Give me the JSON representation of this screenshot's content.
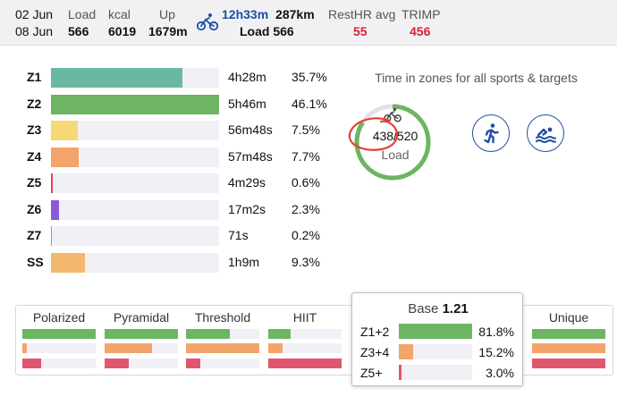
{
  "header": {
    "date_from": "02 Jun",
    "date_to": "08 Jun",
    "load": {
      "label": "Load",
      "value": "566"
    },
    "kcal": {
      "label": "kcal",
      "value": "6019"
    },
    "up": {
      "label": "Up",
      "value": "1679m"
    },
    "bike": {
      "icon": "bicycle-icon",
      "time": "12h33m",
      "distance": "287km",
      "load": "Load 566"
    },
    "resthr": {
      "label": "RestHR avg",
      "value": "55"
    },
    "trimp": {
      "label": "TRIMP",
      "value": "456"
    }
  },
  "zones": [
    {
      "name": "Z1",
      "time": "4h28m",
      "percent": "35.7%",
      "fill": 0.78,
      "color": "#6ab8a4"
    },
    {
      "name": "Z2",
      "time": "5h46m",
      "percent": "46.1%",
      "fill": 1.0,
      "color": "#6db562"
    },
    {
      "name": "Z3",
      "time": "56m48s",
      "percent": "7.5%",
      "fill": 0.16,
      "color": "#f6d874"
    },
    {
      "name": "Z4",
      "time": "57m48s",
      "percent": "7.7%",
      "fill": 0.165,
      "color": "#f2a46a"
    },
    {
      "name": "Z5",
      "time": "4m29s",
      "percent": "0.6%",
      "fill": 0.012,
      "color": "#e0475f"
    },
    {
      "name": "Z6",
      "time": "17m2s",
      "percent": "2.3%",
      "fill": 0.048,
      "color": "#8b5ad6"
    },
    {
      "name": "Z7",
      "time": "71s",
      "percent": "0.2%",
      "fill": 0.006,
      "color": "#9a9aa6"
    },
    {
      "name": "SS",
      "time": "1h9m",
      "percent": "9.3%",
      "fill": 0.2,
      "color": "#f4b86e"
    }
  ],
  "time_in_zones_title": "Time in zones for all sports & targets",
  "gauge": {
    "value": "438/520",
    "label": "Load",
    "fraction": 0.842,
    "color": "#6db562",
    "icon": "bicycle-icon"
  },
  "sport_buttons": [
    {
      "icon": "running-icon",
      "color": "#1d4fa3"
    },
    {
      "icon": "swimming-icon",
      "color": "#1d4fa3"
    }
  ],
  "distribution": {
    "columns": [
      {
        "title": "Polarized",
        "bars": [
          1.0,
          0.06,
          0.25
        ]
      },
      {
        "title": "Pyramidal",
        "bars": [
          1.0,
          0.65,
          0.33
        ]
      },
      {
        "title": "Threshold",
        "bars": [
          0.6,
          1.0,
          0.2
        ]
      },
      {
        "title": "HIIT",
        "bars": [
          0.3,
          0.2,
          1.0
        ]
      },
      {
        "title": "",
        "bars": []
      },
      {
        "title": "Unique",
        "bars": [
          1.0,
          1.0,
          1.0
        ]
      }
    ],
    "bar_colors": [
      "#6db562",
      "#f2a46a",
      "#e0566f"
    ]
  },
  "tooltip": {
    "label": "Base",
    "value": "1.21",
    "rows": [
      {
        "name": "Z1+2",
        "percent": "81.8%",
        "fill": 1.0,
        "color": "#6db562"
      },
      {
        "name": "Z3+4",
        "percent": "15.2%",
        "fill": 0.19,
        "color": "#f2a46a"
      },
      {
        "name": "Z5+",
        "percent": "3.0%",
        "fill": 0.04,
        "color": "#e0566f"
      }
    ]
  }
}
